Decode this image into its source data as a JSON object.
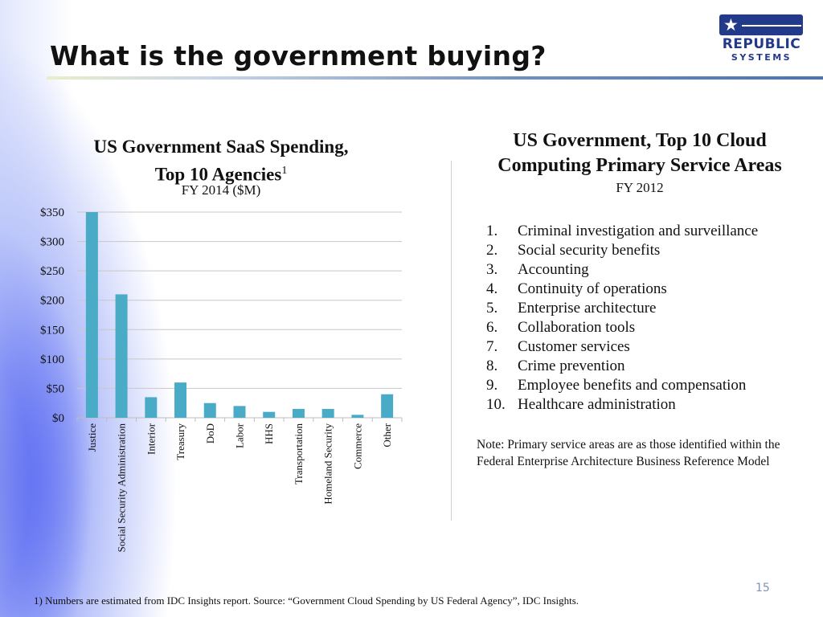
{
  "slide": {
    "title": "What is the government buying?",
    "page_number": "15",
    "footnote": "1) Numbers are estimated from IDC Insights report. Source: “Government Cloud Spending by US Federal Agency”, IDC Insights."
  },
  "logo": {
    "line1": "REPUBLIC",
    "line2": "SYSTEMS",
    "star": "★",
    "color": "#233a8a"
  },
  "left_panel": {
    "title_line1": "US Government SaaS Spending,",
    "title_line2": "Top 10 Agencies",
    "title_superscript": "1",
    "subtitle": "FY 2014 ($M)"
  },
  "chart_data": {
    "type": "bar",
    "categories": [
      "Justice",
      "Social Security Administration",
      "Interior",
      "Treasury",
      "DoD",
      "Labor",
      "HHS",
      "Transportation",
      "Homeland Security",
      "Commerce",
      "Other"
    ],
    "values": [
      350,
      210,
      35,
      60,
      25,
      20,
      10,
      15,
      15,
      5,
      40
    ],
    "ylim": [
      0,
      350
    ],
    "yticks": [
      0,
      50,
      100,
      150,
      200,
      250,
      300,
      350
    ],
    "ytick_labels": [
      "$0",
      "$50",
      "$100",
      "$150",
      "$200",
      "$250",
      "$300",
      "$350"
    ],
    "grid": true,
    "bar_color": "#4aabc6"
  },
  "right_panel": {
    "title_line1": "US Government, Top 10 Cloud",
    "title_line2": "Computing Primary Service Areas",
    "subtitle": "FY 2012",
    "items": [
      {
        "num": "1.",
        "label": "Criminal investigation and surveillance"
      },
      {
        "num": "2.",
        "label": "Social security benefits"
      },
      {
        "num": "3.",
        "label": "Accounting"
      },
      {
        "num": "4.",
        "label": "Continuity of operations"
      },
      {
        "num": "5.",
        "label": "Enterprise architecture"
      },
      {
        "num": "6.",
        "label": "Collaboration tools"
      },
      {
        "num": "7.",
        "label": "Customer services"
      },
      {
        "num": "8.",
        "label": "Crime prevention"
      },
      {
        "num": "9.",
        "label": "Employee benefits and compensation"
      },
      {
        "num": "10.",
        "label": "Healthcare administration"
      }
    ],
    "note": "Note: Primary service areas are as those identified within the Federal Enterprise Architecture Business Reference Model"
  }
}
